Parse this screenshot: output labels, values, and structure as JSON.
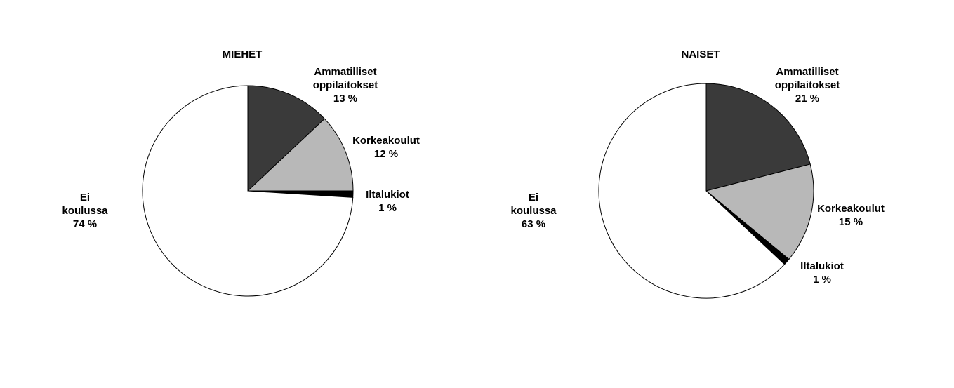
{
  "chart_data": [
    {
      "type": "pie",
      "title": "MIEHET",
      "categories": [
        "Ammatilliset oppilaitokset",
        "Korkeakoulut",
        "Iltalukiot",
        "Ei koulussa"
      ],
      "values": [
        13,
        12,
        1,
        74
      ],
      "value_labels": [
        "13 %",
        "12 %",
        "1 %",
        "74 %"
      ],
      "colors": [
        "#3a3a3a",
        "#b8b8b8",
        "#000000",
        "#ffffff"
      ]
    },
    {
      "type": "pie",
      "title": "NAISET",
      "categories": [
        "Ammatilliset oppilaitokset",
        "Korkeakoulut",
        "Iltalukiot",
        "Ei koulussa"
      ],
      "values": [
        21,
        15,
        1,
        63
      ],
      "value_labels": [
        "21 %",
        "15 %",
        "1 %",
        "63 %"
      ],
      "colors": [
        "#3a3a3a",
        "#b8b8b8",
        "#000000",
        "#ffffff"
      ]
    }
  ]
}
